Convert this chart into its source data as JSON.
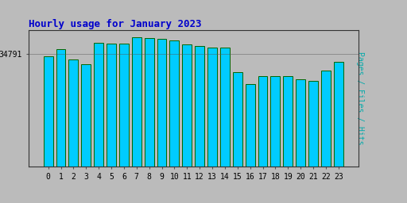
{
  "title": "Hourly usage for January 2023",
  "hours": [
    0,
    1,
    2,
    3,
    4,
    5,
    6,
    7,
    8,
    9,
    10,
    11,
    12,
    13,
    14,
    15,
    16,
    17,
    18,
    19,
    20,
    21,
    22,
    23
  ],
  "values": [
    33900,
    36200,
    33000,
    31500,
    38300,
    38000,
    38000,
    40000,
    39600,
    39500,
    38900,
    37700,
    37200,
    36700,
    36700,
    29000,
    25500,
    28000,
    28000,
    28000,
    26800,
    26400,
    29600,
    32200
  ],
  "bar_color": "#00CCFF",
  "bar_edge_color": "#006600",
  "bar_edge_width": 0.7,
  "background_color": "#BBBBBB",
  "plot_bg_color": "#BBBBBB",
  "title_color": "#0000CC",
  "ylabel_color": "#00AAAA",
  "ylabel": "Pages / Files / Hits",
  "ytick_label": "34791",
  "ytick_value": 34791,
  "ylim_min": 0,
  "ylim_max": 42000,
  "title_fontsize": 9,
  "ylabel_fontsize": 7,
  "tick_fontsize": 7,
  "bar_width": 0.75
}
